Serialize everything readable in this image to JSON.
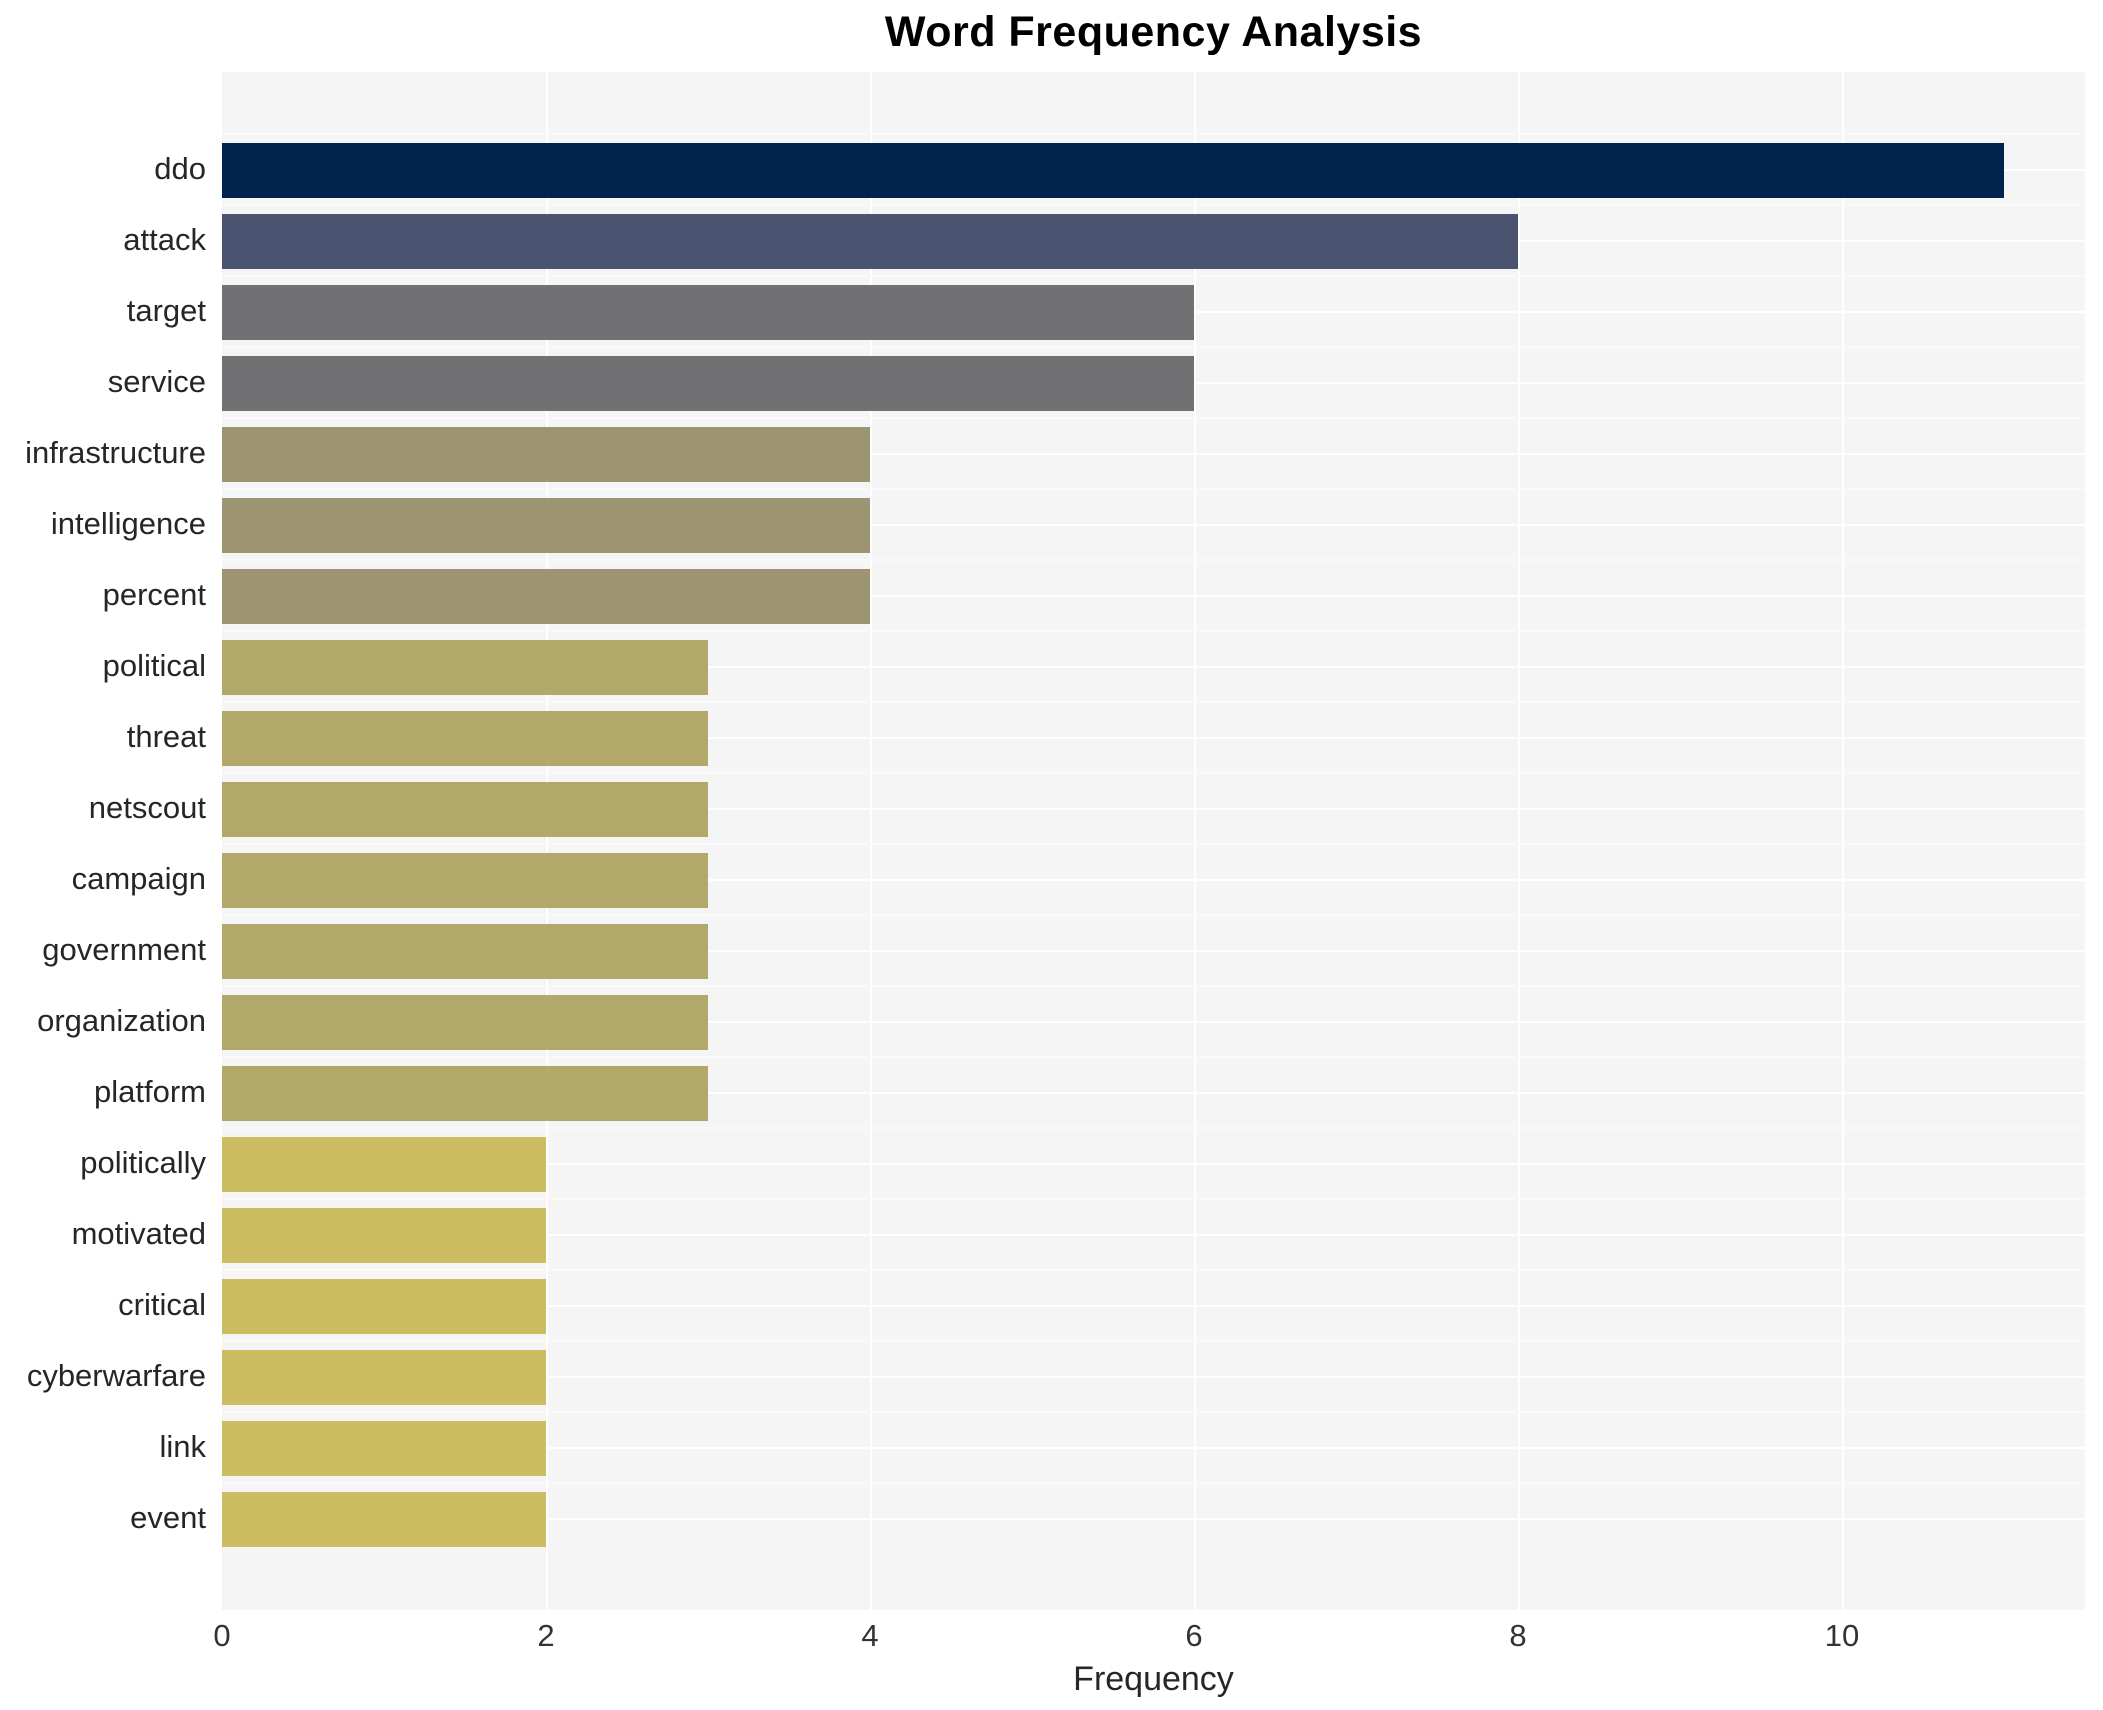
{
  "chart_data": {
    "type": "bar",
    "orientation": "horizontal",
    "title": "Word Frequency Analysis",
    "xlabel": "Frequency",
    "ylabel": "",
    "categories": [
      "ddo",
      "attack",
      "target",
      "service",
      "infrastructure",
      "intelligence",
      "percent",
      "political",
      "threat",
      "netscout",
      "campaign",
      "government",
      "organization",
      "platform",
      "politically",
      "motivated",
      "critical",
      "cyberwarfare",
      "link",
      "event"
    ],
    "values": [
      11,
      8,
      6,
      6,
      4,
      4,
      4,
      3,
      3,
      3,
      3,
      3,
      3,
      3,
      2,
      2,
      2,
      2,
      2,
      2
    ],
    "bar_colors": [
      "#01234e",
      "#4a5470",
      "#717174",
      "#717174",
      "#9d9472",
      "#9d9472",
      "#9d9472",
      "#b2a86a",
      "#b2a86a",
      "#b2a86a",
      "#b2a86a",
      "#b2a86a",
      "#b2a86a",
      "#b2a86a",
      "#ccbc62",
      "#ccbc62",
      "#ccbc62",
      "#ccbc62",
      "#ccbc62",
      "#ccbc62"
    ],
    "xlim": [
      0,
      11.5
    ],
    "xticks": [
      0,
      2,
      4,
      6,
      8,
      10
    ],
    "xtick_labels": [
      "0",
      "2",
      "4",
      "6",
      "8",
      "10"
    ],
    "legend": "none",
    "grid": "on",
    "panel_background": "#f5f5f6",
    "gridline_color": "#ffffff"
  }
}
